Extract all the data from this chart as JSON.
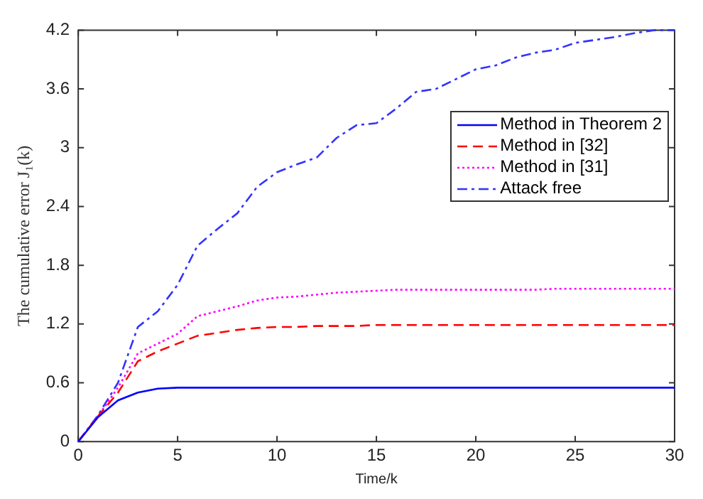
{
  "chart_data": {
    "type": "line",
    "xlabel": "Time/k",
    "ylabel": "The cumulative error J₁(k)",
    "x": [
      0,
      1,
      2,
      3,
      4,
      5,
      6,
      7,
      8,
      9,
      10,
      11,
      12,
      13,
      14,
      15,
      16,
      17,
      18,
      19,
      20,
      21,
      22,
      23,
      24,
      25,
      26,
      27,
      28,
      29,
      30
    ],
    "series": [
      {
        "name": "Method in Theorem 2",
        "color": "#0000ff",
        "line_style": "solid",
        "values": [
          0,
          0.25,
          0.42,
          0.5,
          0.54,
          0.55,
          0.55,
          0.55,
          0.55,
          0.55,
          0.55,
          0.55,
          0.55,
          0.55,
          0.55,
          0.55,
          0.55,
          0.55,
          0.55,
          0.55,
          0.55,
          0.55,
          0.55,
          0.55,
          0.55,
          0.55,
          0.55,
          0.55,
          0.55,
          0.55,
          0.55
        ]
      },
      {
        "name": "Method in [32]",
        "color": "#ff0000",
        "line_style": "dashed",
        "values": [
          0,
          0.26,
          0.5,
          0.82,
          0.92,
          1.0,
          1.08,
          1.11,
          1.14,
          1.16,
          1.17,
          1.17,
          1.18,
          1.18,
          1.18,
          1.19,
          1.19,
          1.19,
          1.19,
          1.19,
          1.19,
          1.19,
          1.19,
          1.19,
          1.19,
          1.19,
          1.19,
          1.19,
          1.19,
          1.19,
          1.19
        ]
      },
      {
        "name": "Method in [31]",
        "color": "#ff00ff",
        "line_style": "dotted",
        "values": [
          0,
          0.26,
          0.55,
          0.9,
          1.0,
          1.1,
          1.28,
          1.33,
          1.38,
          1.44,
          1.47,
          1.48,
          1.5,
          1.52,
          1.53,
          1.54,
          1.55,
          1.55,
          1.55,
          1.55,
          1.55,
          1.55,
          1.55,
          1.55,
          1.56,
          1.56,
          1.56,
          1.56,
          1.56,
          1.56,
          1.56
        ]
      },
      {
        "name": "Attack free",
        "color": "#3333ff",
        "line_style": "dashdot",
        "values": [
          0,
          0.27,
          0.6,
          1.17,
          1.33,
          1.6,
          2.0,
          2.17,
          2.33,
          2.6,
          2.75,
          2.83,
          2.9,
          3.1,
          3.23,
          3.25,
          3.4,
          3.57,
          3.6,
          3.7,
          3.8,
          3.84,
          3.92,
          3.97,
          4.0,
          4.07,
          4.1,
          4.13,
          4.17,
          4.2,
          4.2
        ]
      }
    ],
    "xlim": [
      0,
      30
    ],
    "xticks": [
      0,
      5,
      10,
      15,
      20,
      25,
      30
    ],
    "ylim": [
      0,
      4.2
    ],
    "yticks": [
      0,
      0.6,
      1.2,
      1.8,
      2.4,
      3,
      3.6,
      4.2
    ],
    "legend": "right",
    "marker": "none",
    "grid": false
  }
}
